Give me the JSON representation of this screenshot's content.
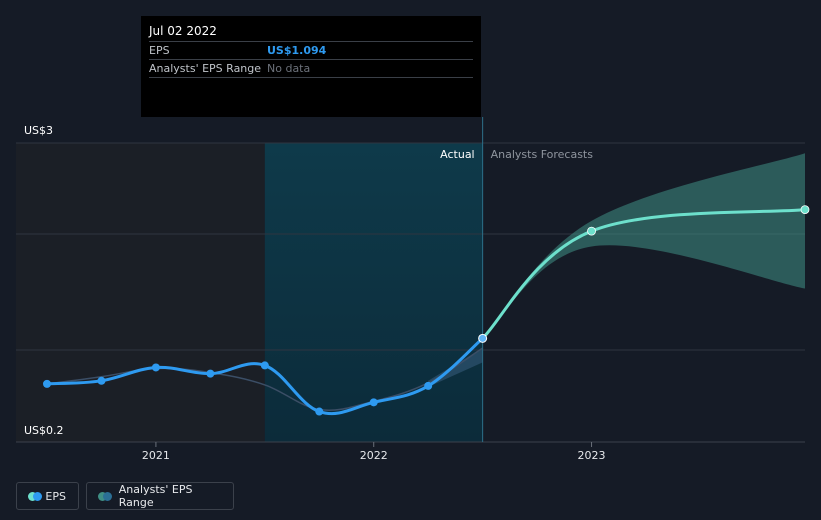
{
  "tooltip": {
    "date": "Jul 02 2022",
    "eps_label": "EPS",
    "eps_value": "US$1.094",
    "range_label": "Analysts' EPS Range",
    "range_value": "No data"
  },
  "legend": {
    "eps_label": "EPS",
    "range_label": "Analysts' EPS Range"
  },
  "colors": {
    "background": "#151b26",
    "eps_actual": "#2e9af0",
    "eps_forecast": "#6de0cc",
    "range_fill": "#3f8f85",
    "highlight": "#0e3a4a",
    "past_shade": "#1b1f26"
  },
  "chart_data": {
    "type": "line",
    "title": "",
    "xlabel": "",
    "ylabel": "",
    "y_labels": [
      "US$3",
      "US$0.2"
    ],
    "x_labels": [
      "2021",
      "2022",
      "2023"
    ],
    "section_labels": {
      "actual": "Actual",
      "forecasts": "Analysts Forecasts"
    },
    "ylim": [
      0.2,
      3.0
    ],
    "xlim": [
      2020.5,
      2023.98
    ],
    "grid": true,
    "legend": "bottom-left",
    "series": [
      {
        "name": "EPS",
        "kind": "actual",
        "points": [
          {
            "x": 2020.5,
            "y": 0.65
          },
          {
            "x": 2020.75,
            "y": 0.68
          },
          {
            "x": 2021.0,
            "y": 0.81
          },
          {
            "x": 2021.25,
            "y": 0.75
          },
          {
            "x": 2021.5,
            "y": 0.83
          },
          {
            "x": 2021.75,
            "y": 0.38
          },
          {
            "x": 2022.0,
            "y": 0.47
          },
          {
            "x": 2022.25,
            "y": 0.63
          },
          {
            "x": 2022.5,
            "y": 1.094
          }
        ]
      },
      {
        "name": "EPS",
        "kind": "forecast",
        "points": [
          {
            "x": 2022.5,
            "y": 1.094
          },
          {
            "x": 2023.0,
            "y": 2.14
          },
          {
            "x": 2023.98,
            "y": 2.35
          }
        ]
      }
    ],
    "forecast_range": {
      "x": [
        2022.5,
        2023.0,
        2023.98
      ],
      "low": [
        1.094,
        1.99,
        1.58
      ],
      "high": [
        1.094,
        2.24,
        2.9
      ]
    },
    "analyst_estimates": [
      {
        "x": 2020.5,
        "y": 0.65
      },
      {
        "x": 2020.75,
        "y": 0.72
      },
      {
        "x": 2021.0,
        "y": 0.8
      },
      {
        "x": 2021.25,
        "y": 0.76
      },
      {
        "x": 2021.5,
        "y": 0.64
      },
      {
        "x": 2021.75,
        "y": 0.4
      },
      {
        "x": 2022.0,
        "y": 0.48
      },
      {
        "x": 2022.25,
        "y": 0.66
      },
      {
        "x": 2022.5,
        "y": 1.0
      }
    ],
    "estimate_band": {
      "x": [
        2022.25,
        2022.5
      ],
      "low": [
        0.62,
        0.86
      ],
      "high": [
        0.68,
        1.0
      ]
    },
    "past_period_end": 2021.5,
    "highlight_period": [
      2021.5,
      2022.5
    ]
  }
}
